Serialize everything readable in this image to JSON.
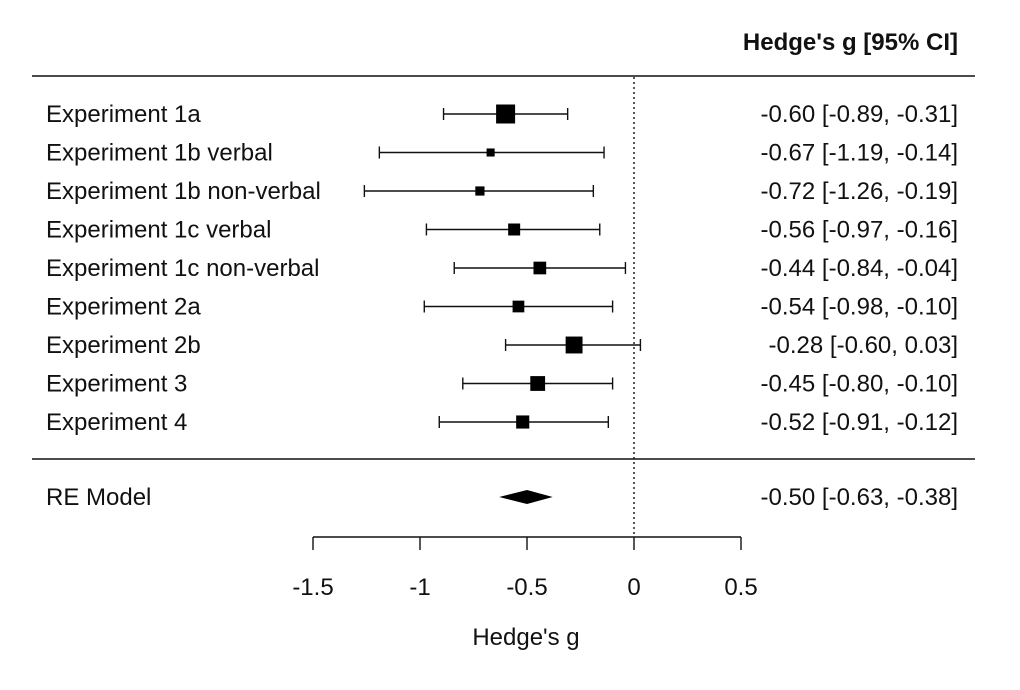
{
  "chart_data": {
    "type": "forest",
    "header": "Hedge's g [95% CI]",
    "xlabel": "Hedge's g",
    "xlim": [
      -1.5,
      0.5
    ],
    "xticks": [
      -1.5,
      -1,
      -0.5,
      0,
      0.5
    ],
    "xtick_labels": [
      "-1.5",
      "-1",
      "-0.5",
      "0",
      "0.5"
    ],
    "reference_line": 0,
    "studies": [
      {
        "label": "Experiment 1a",
        "estimate": -0.6,
        "lower": -0.89,
        "upper": -0.31,
        "ci_text": "-0.60 [-0.89, -0.31]",
        "weight": 1.0
      },
      {
        "label": "Experiment 1b verbal",
        "estimate": -0.67,
        "lower": -1.19,
        "upper": -0.14,
        "ci_text": "-0.67 [-1.19, -0.14]",
        "weight": 0.22
      },
      {
        "label": "Experiment 1b non-verbal",
        "estimate": -0.72,
        "lower": -1.26,
        "upper": -0.19,
        "ci_text": "-0.72 [-1.26, -0.19]",
        "weight": 0.3
      },
      {
        "label": "Experiment 1c verbal",
        "estimate": -0.56,
        "lower": -0.97,
        "upper": -0.16,
        "ci_text": "-0.56 [-0.97, -0.16]",
        "weight": 0.5
      },
      {
        "label": "Experiment 1c non-verbal",
        "estimate": -0.44,
        "lower": -0.84,
        "upper": -0.04,
        "ci_text": "-0.44 [-0.84, -0.04]",
        "weight": 0.55
      },
      {
        "label": "Experiment 2a",
        "estimate": -0.54,
        "lower": -0.98,
        "upper": -0.1,
        "ci_text": "-0.54 [-0.98, -0.10]",
        "weight": 0.48
      },
      {
        "label": "Experiment 2b",
        "estimate": -0.28,
        "lower": -0.6,
        "upper": 0.03,
        "ci_text": "-0.28 [-0.60,  0.03]",
        "weight": 0.85
      },
      {
        "label": "Experiment 3",
        "estimate": -0.45,
        "lower": -0.8,
        "upper": -0.1,
        "ci_text": "-0.45 [-0.80, -0.10]",
        "weight": 0.7
      },
      {
        "label": "Experiment 4",
        "estimate": -0.52,
        "lower": -0.91,
        "upper": -0.12,
        "ci_text": "-0.52 [-0.91, -0.12]",
        "weight": 0.58
      }
    ],
    "summary": {
      "label": "RE Model",
      "estimate": -0.5,
      "lower": -0.63,
      "upper": -0.38,
      "ci_text": "-0.50 [-0.63, -0.38]"
    }
  }
}
